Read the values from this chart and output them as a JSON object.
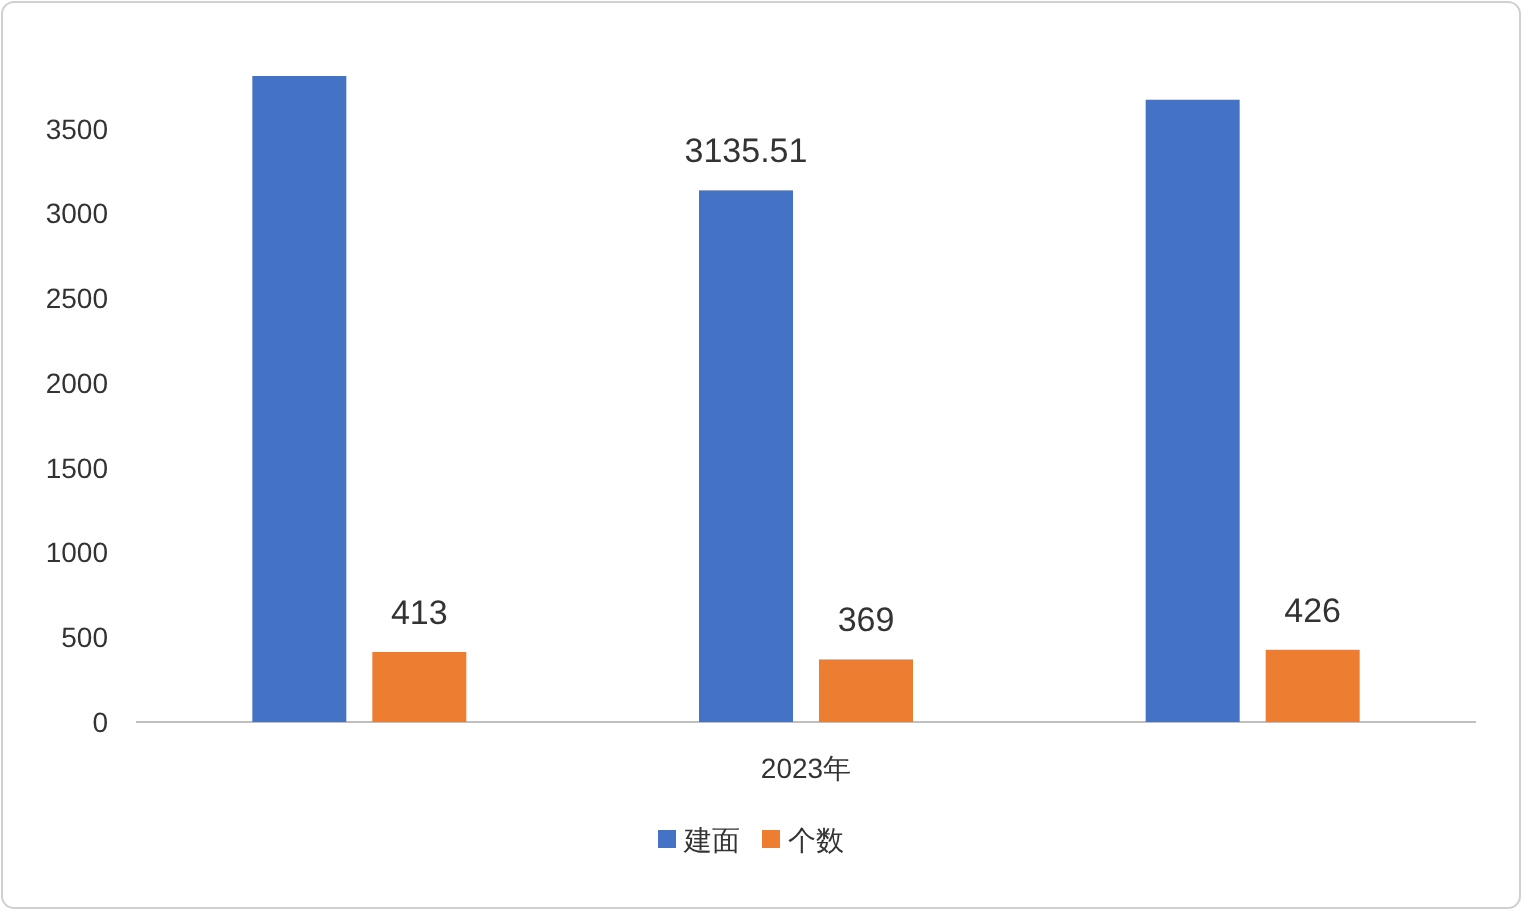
{
  "chart_data": {
    "type": "bar",
    "categories": [
      null,
      "2023年",
      null
    ],
    "series": [
      {
        "name": "建面",
        "color": "#4472c4",
        "values": [
          3810,
          3135.51,
          3670
        ],
        "value_labels": [
          null,
          "3135.51",
          null
        ]
      },
      {
        "name": "个数",
        "color": "#ed7d31",
        "values": [
          413,
          369,
          426
        ],
        "value_labels": [
          "413",
          "369",
          "426"
        ]
      }
    ],
    "ylim": [
      0,
      3810
    ],
    "yticks": [
      0,
      500,
      1000,
      1500,
      2000,
      2500,
      3000,
      3500
    ],
    "legend": "bottom",
    "grid": false
  }
}
